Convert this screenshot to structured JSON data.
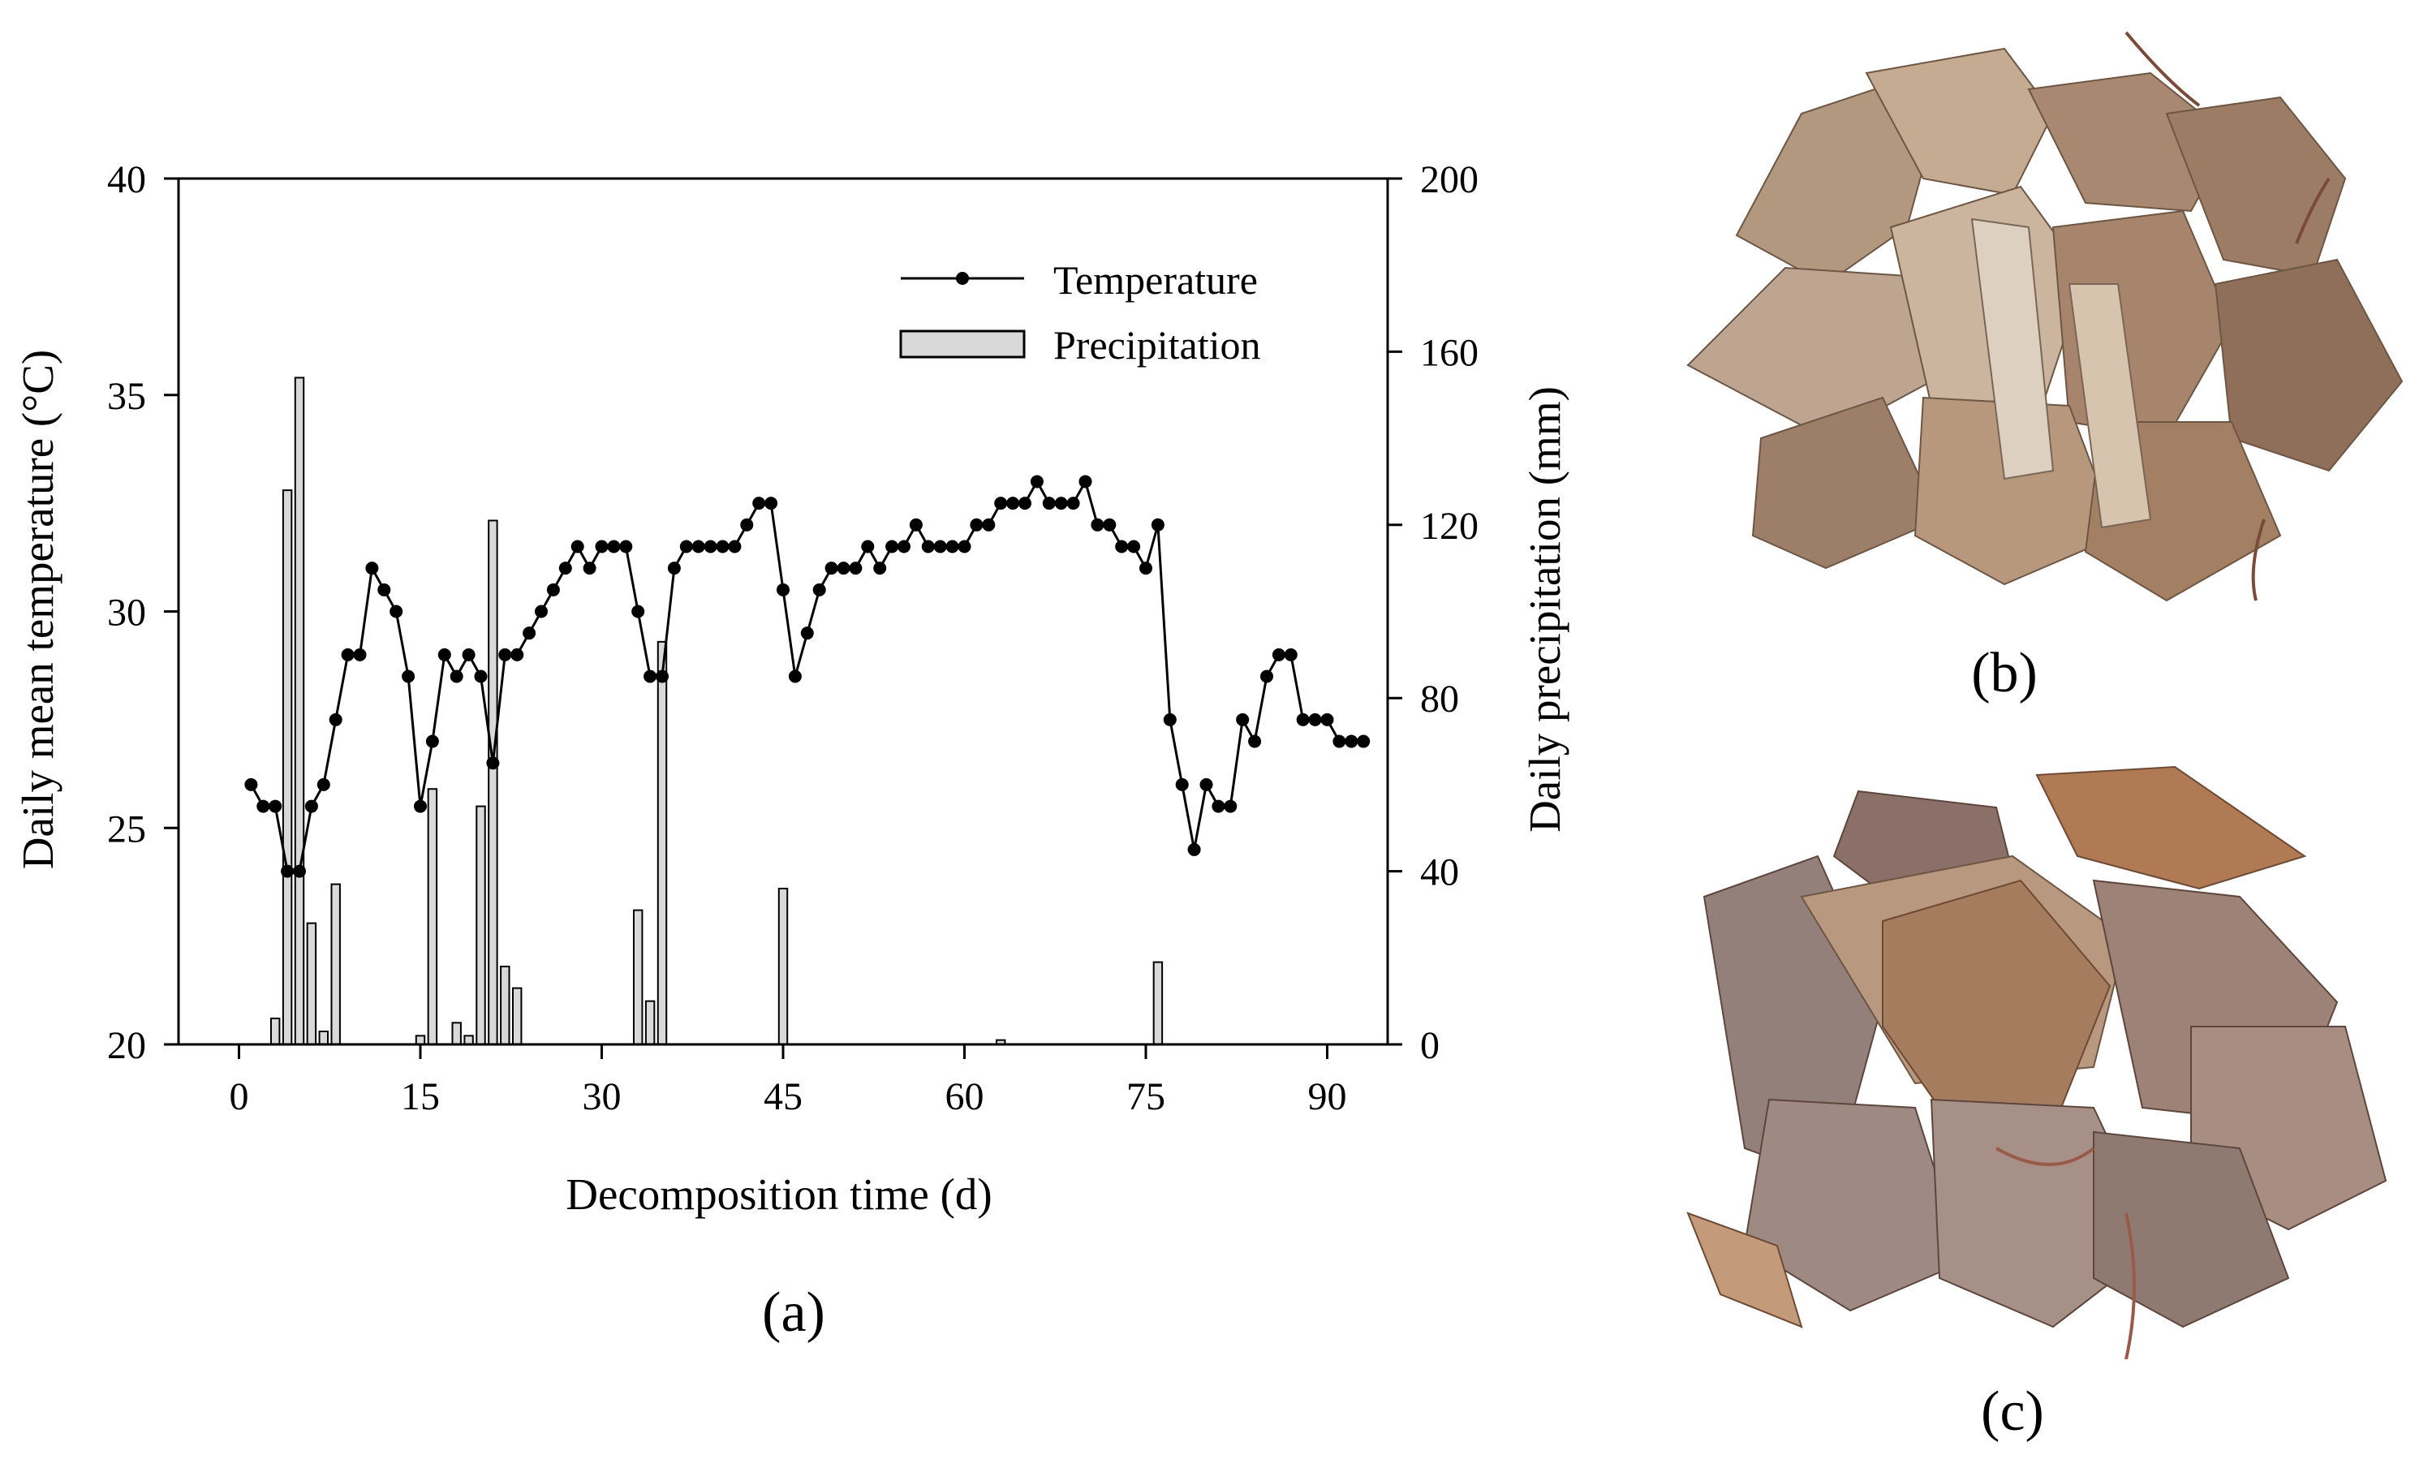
{
  "chart_data": {
    "type": "line+bar",
    "xlabel": "Decomposition time (d)",
    "ylabel_left": "Daily mean temperature (°C)",
    "ylabel_right": "Daily precipitation (mm)",
    "xlim": [
      -5,
      95
    ],
    "xticks": [
      0,
      15,
      30,
      45,
      60,
      75,
      90
    ],
    "ylim_left": [
      20,
      40
    ],
    "yticks_left": [
      20,
      25,
      30,
      35,
      40
    ],
    "ylim_right": [
      0,
      200
    ],
    "yticks_right": [
      0,
      40,
      80,
      120,
      160,
      200
    ],
    "grid": false,
    "legend_position": "top-right",
    "series": [
      {
        "name": "Temperature",
        "kind": "line",
        "axis": "left",
        "x": [
          1,
          2,
          3,
          4,
          5,
          6,
          7,
          8,
          9,
          10,
          11,
          12,
          13,
          14,
          15,
          16,
          17,
          18,
          19,
          20,
          21,
          22,
          23,
          24,
          25,
          26,
          27,
          28,
          29,
          30,
          31,
          32,
          33,
          34,
          35,
          36,
          37,
          38,
          39,
          40,
          41,
          42,
          43,
          44,
          45,
          46,
          47,
          48,
          49,
          50,
          51,
          52,
          53,
          54,
          55,
          56,
          57,
          58,
          59,
          60,
          61,
          62,
          63,
          64,
          65,
          66,
          67,
          68,
          69,
          70,
          71,
          72,
          73,
          74,
          75,
          76,
          77,
          78,
          79,
          80,
          81,
          82,
          83,
          84,
          85,
          86,
          87,
          88,
          89,
          90,
          91,
          92,
          93
        ],
        "values": [
          26,
          25.5,
          25.5,
          24,
          24,
          25.5,
          26,
          27.5,
          29,
          29,
          31,
          30.5,
          30,
          28.5,
          25.5,
          27,
          29,
          28.5,
          29,
          28.5,
          26.5,
          29,
          29,
          29.5,
          30,
          30.5,
          31,
          31.5,
          31,
          31.5,
          31.5,
          31.5,
          30,
          28.5,
          28.5,
          31,
          31.5,
          31.5,
          31.5,
          31.5,
          31.5,
          32,
          32.5,
          32.5,
          30.5,
          28.5,
          29.5,
          30.5,
          31,
          31,
          31,
          31.5,
          31,
          31.5,
          31.5,
          32,
          31.5,
          31.5,
          31.5,
          31.5,
          32,
          32,
          32.5,
          32.5,
          32.5,
          33,
          32.5,
          32.5,
          32.5,
          33,
          32,
          32,
          31.5,
          31.5,
          31,
          32,
          27.5,
          26,
          24.5,
          26,
          25.5,
          25.5,
          27.5,
          27,
          28.5,
          29,
          29,
          27.5,
          27.5,
          27.5,
          27,
          27,
          27
        ]
      },
      {
        "name": "Precipitation",
        "kind": "bar",
        "axis": "right",
        "x": [
          3,
          4,
          5,
          6,
          7,
          8,
          15,
          16,
          18,
          19,
          20,
          21,
          22,
          23,
          33,
          34,
          35,
          45,
          63,
          76
        ],
        "values": [
          6,
          128,
          154,
          28,
          3,
          37,
          2,
          59,
          5,
          2,
          55,
          121,
          18,
          13,
          31,
          10,
          93,
          36,
          1,
          19
        ]
      }
    ],
    "panel_labels": [
      "(a)",
      "(b)",
      "(c)"
    ]
  },
  "photos": {
    "b": {
      "description_icon": "dried-leaf-litter-photo",
      "label": "(b)"
    },
    "c": {
      "description_icon": "dried-leaf-litter-photo",
      "label": "(c)"
    }
  },
  "colors": {
    "line": "#000000",
    "bar_fill": "#d9d9d9",
    "bar_stroke": "#000000",
    "leaf_light": "#c8b29a",
    "leaf_mid": "#a98b72",
    "leaf_dark": "#7a5e4a",
    "leaf_purple": "#8a7068"
  }
}
